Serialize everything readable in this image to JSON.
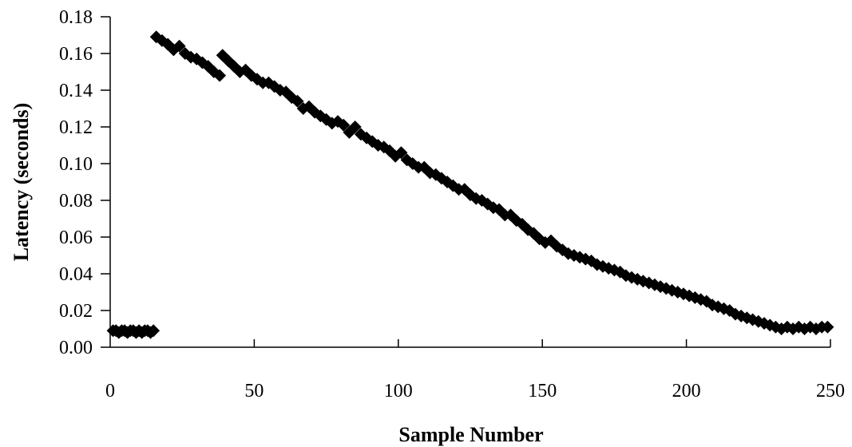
{
  "chart_data": {
    "type": "scatter",
    "title": "",
    "xlabel": "Sample Number",
    "ylabel": "Latency (seconds)",
    "xlim": [
      0,
      250
    ],
    "ylim": [
      0,
      0.18
    ],
    "x_ticks": [
      "0",
      "50",
      "100",
      "150",
      "200",
      "250"
    ],
    "y_ticks": [
      "0.00",
      "0.02",
      "0.04",
      "0.06",
      "0.08",
      "0.10",
      "0.12",
      "0.14",
      "0.16",
      "0.18"
    ],
    "grid": false,
    "legend": "none",
    "marker": "diamond",
    "marker_color": "#000000",
    "series": [
      {
        "x": [
          1,
          2,
          3,
          4,
          5,
          6,
          7,
          8,
          9,
          10,
          11,
          12,
          13,
          14,
          15,
          16,
          18,
          20,
          22,
          24,
          26,
          28,
          30,
          32,
          34,
          36,
          38,
          39,
          41,
          43,
          45,
          47,
          49,
          51,
          53,
          55,
          57,
          59,
          61,
          63,
          65,
          67,
          69,
          71,
          73,
          75,
          77,
          79,
          81,
          83,
          85,
          87,
          89,
          91,
          93,
          95,
          97,
          99,
          101,
          103,
          105,
          107,
          109,
          111,
          113,
          115,
          117,
          119,
          121,
          123,
          125,
          127,
          129,
          131,
          133,
          135,
          137,
          139,
          141,
          143,
          145,
          147,
          149,
          151,
          153,
          155,
          157,
          159,
          161,
          163,
          165,
          167,
          169,
          171,
          173,
          175,
          177,
          179,
          181,
          183,
          185,
          187,
          189,
          191,
          193,
          195,
          197,
          199,
          201,
          203,
          205,
          207,
          209,
          211,
          213,
          215,
          217,
          219,
          221,
          223,
          225,
          227,
          229,
          231,
          233,
          235,
          237,
          239,
          241,
          243,
          245,
          247,
          249
        ],
        "y": [
          0.009,
          0.009,
          0.008,
          0.009,
          0.009,
          0.008,
          0.009,
          0.009,
          0.008,
          0.009,
          0.008,
          0.009,
          0.009,
          0.008,
          0.009,
          0.169,
          0.167,
          0.165,
          0.162,
          0.164,
          0.16,
          0.158,
          0.157,
          0.155,
          0.153,
          0.15,
          0.148,
          0.159,
          0.156,
          0.153,
          0.15,
          0.151,
          0.148,
          0.146,
          0.144,
          0.144,
          0.142,
          0.14,
          0.139,
          0.136,
          0.134,
          0.13,
          0.131,
          0.128,
          0.126,
          0.124,
          0.122,
          0.123,
          0.121,
          0.117,
          0.12,
          0.116,
          0.114,
          0.112,
          0.11,
          0.109,
          0.107,
          0.104,
          0.106,
          0.102,
          0.1,
          0.098,
          0.098,
          0.095,
          0.094,
          0.092,
          0.09,
          0.088,
          0.086,
          0.086,
          0.083,
          0.081,
          0.08,
          0.078,
          0.076,
          0.075,
          0.072,
          0.072,
          0.069,
          0.067,
          0.064,
          0.062,
          0.059,
          0.057,
          0.058,
          0.055,
          0.053,
          0.051,
          0.05,
          0.049,
          0.048,
          0.047,
          0.045,
          0.044,
          0.043,
          0.042,
          0.041,
          0.039,
          0.038,
          0.037,
          0.036,
          0.035,
          0.034,
          0.033,
          0.032,
          0.031,
          0.03,
          0.029,
          0.028,
          0.027,
          0.026,
          0.025,
          0.023,
          0.022,
          0.021,
          0.02,
          0.018,
          0.017,
          0.016,
          0.015,
          0.014,
          0.013,
          0.012,
          0.011,
          0.01,
          0.011,
          0.01,
          0.011,
          0.01,
          0.011,
          0.01,
          0.011,
          0.011
        ]
      }
    ]
  }
}
